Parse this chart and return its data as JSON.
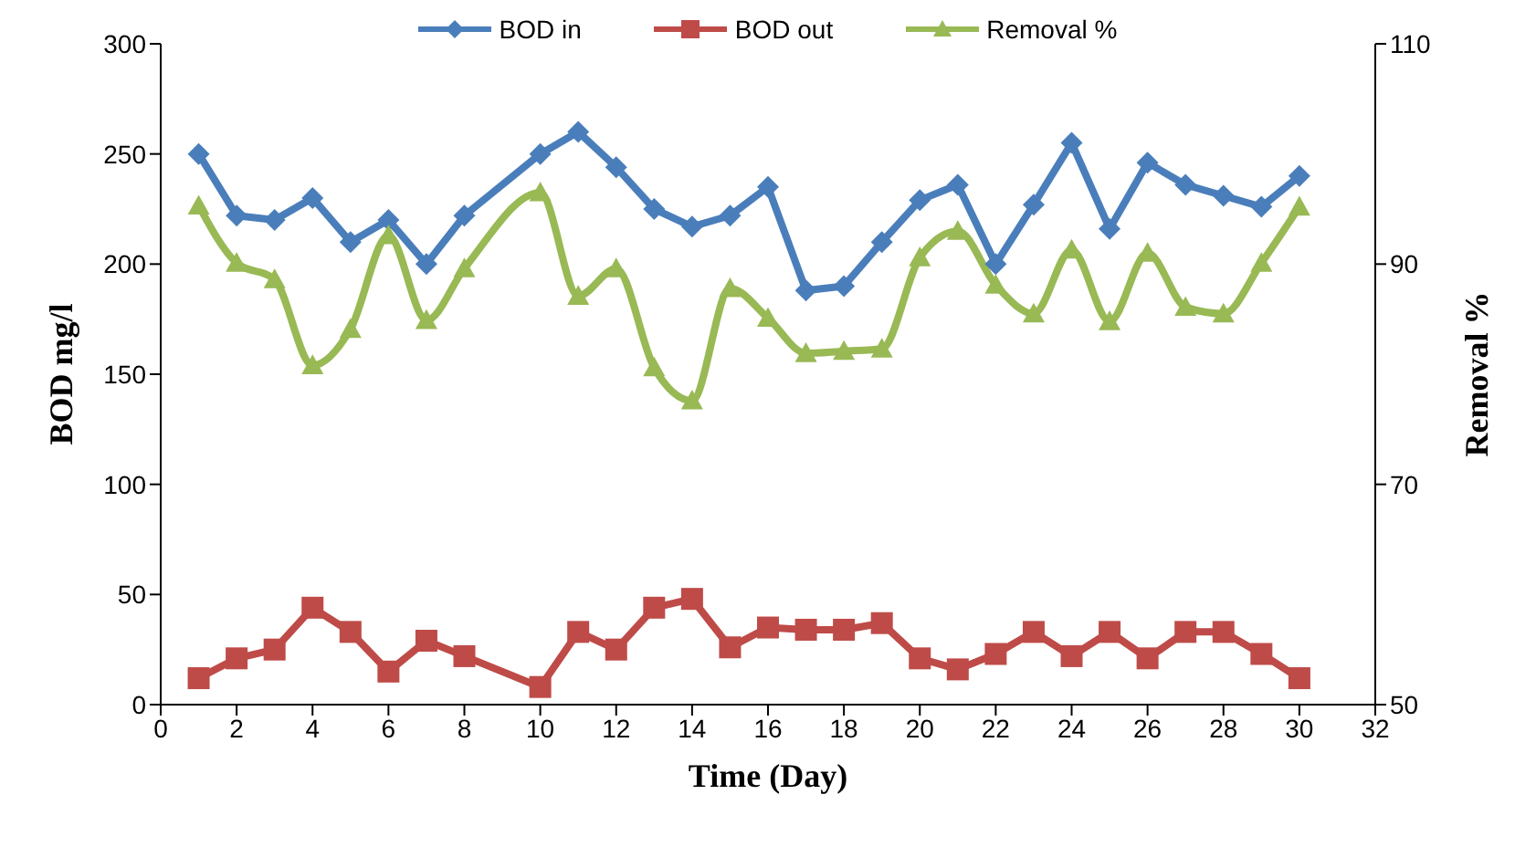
{
  "chart_data": {
    "type": "line",
    "xlabel": "Time (Day)",
    "ylabel": "BOD mg/l",
    "y2label": "Removal %",
    "x": [
      1,
      2,
      3,
      4,
      5,
      6,
      7,
      8,
      10,
      11,
      12,
      13,
      14,
      15,
      16,
      17,
      18,
      19,
      20,
      21,
      22,
      23,
      24,
      25,
      26,
      27,
      28,
      29,
      30
    ],
    "xlim": [
      0,
      32
    ],
    "xticks": [
      0,
      2,
      4,
      6,
      8,
      10,
      12,
      14,
      16,
      18,
      20,
      22,
      24,
      26,
      28,
      30,
      32
    ],
    "ylim": [
      0,
      300
    ],
    "yticks": [
      0,
      50,
      100,
      150,
      200,
      250,
      300
    ],
    "y2lim": [
      50,
      110
    ],
    "y2ticks": [
      50,
      70,
      90,
      110
    ],
    "legend": "top",
    "line_style": "solid",
    "series": [
      {
        "name": "BOD in",
        "color": "#4a7ebb",
        "marker": "diamond",
        "values": [
          250,
          222,
          220,
          230,
          210,
          220,
          200,
          222,
          250,
          260,
          244,
          225,
          217,
          222,
          235,
          188,
          190,
          210,
          229,
          236,
          200,
          227,
          255,
          216,
          246,
          236,
          231,
          226,
          240
        ]
      },
      {
        "name": "BOD out",
        "color": "#be4b48",
        "marker": "square",
        "values": [
          12,
          21,
          25,
          44,
          33,
          15,
          29,
          22,
          8,
          33,
          25,
          44,
          48,
          26,
          35,
          34,
          34,
          37,
          21,
          16,
          23,
          33,
          22,
          33,
          21,
          33,
          33,
          23,
          12
        ]
      },
      {
        "name": "Removal %",
        "color": "#98b954",
        "marker": "triangle",
        "axis": "y2",
        "values": [
          95.3,
          90.1,
          88.6,
          80.8,
          84.1,
          92.6,
          84.9,
          89.6,
          96.5,
          87.1,
          89.6,
          80.6,
          77.6,
          87.8,
          85.1,
          81.9,
          82.1,
          82.3,
          90.6,
          93.0,
          88.1,
          85.5,
          91.3,
          84.8,
          91.0,
          86.1,
          85.5,
          90.1,
          95.2
        ]
      }
    ]
  }
}
